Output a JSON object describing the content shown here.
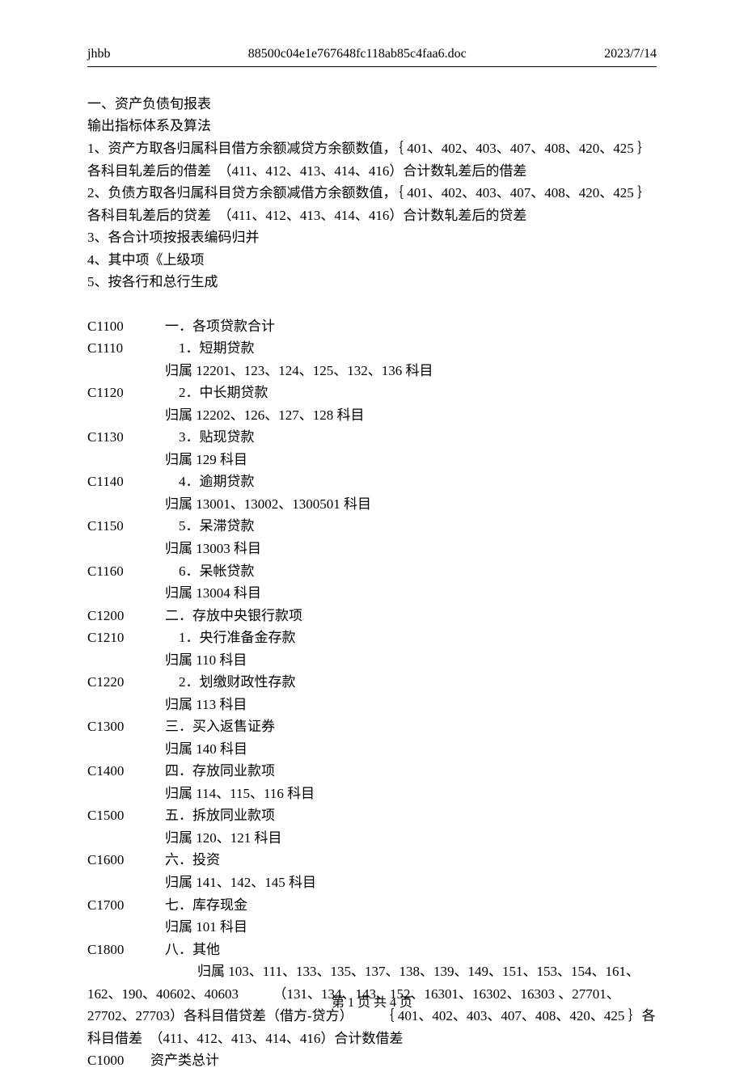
{
  "header": {
    "left": "jhbb",
    "center": "88500c04e1e767648fc118ab85c4faa6.doc",
    "right": "2023/7/14"
  },
  "title": "一、资产负债旬报表",
  "subtitle": "输出指标体系及算法",
  "rules": [
    "1、资产方取各归属科目借方余额减贷方余额数值，｛ 401、402、403、407、408、420、425 ｝各科目轧差后的借差　（411、412、413、414、416）合计数轧差后的借差",
    "2、负债方取各归属科目贷方余额减借方余额数值，｛ 401、402、403、407、408、420、425 ｝各科目轧差后的贷差　（411、412、413、414、416）合计数轧差后的贷差",
    "3、各合计项按报表编码归并",
    "4、其中项《上级项",
    "5、按各行和总行生成"
  ],
  "items": [
    {
      "code": "C1100",
      "desc": "一．各项贷款合计"
    },
    {
      "code": "C1110",
      "desc": "　1．短期贷款",
      "sub": "归属 12201、123、124、125、132、136 科目"
    },
    {
      "code": "C1120",
      "desc": "　2．中长期贷款",
      "sub": "归属 12202、126、127、128 科目"
    },
    {
      "code": "C1130",
      "desc": "　3．贴现贷款",
      "sub": " 归属 129 科目"
    },
    {
      "code": "C1140",
      "desc": "　4．逾期贷款",
      "sub": " 归属 13001、13002、1300501 科目"
    },
    {
      "code": "C1150",
      "desc": "　5．呆滞贷款",
      "sub": "归属 13003 科目"
    },
    {
      "code": "C1160",
      "desc": "　6．呆帐贷款",
      "sub": " 归属 13004 科目"
    },
    {
      "code": "C1200",
      "desc": "二．存放中央银行款项"
    },
    {
      "code": "C1210",
      "desc": "　1．央行准备金存款",
      "sub": " 归属 110 科目"
    },
    {
      "code": "C1220",
      "desc": "　2．划缴财政性存款",
      "sub": " 归属 113 科目"
    },
    {
      "code": "C1300",
      "desc": "三．买入返售证券",
      "sub": " 归属 140 科目"
    },
    {
      "code": "C1400",
      "desc": "四．存放同业款项",
      "sub": "  归属 114、115、116 科目"
    },
    {
      "code": "C1500",
      "desc": "五．拆放同业款项",
      "sub": "  归属 120、121 科目"
    },
    {
      "code": "C1600",
      "desc": "六．投资",
      "sub": "  归属 141、142、145 科目"
    },
    {
      "code": "C1700",
      "desc": "七．库存现金",
      "sub": "  归属 101 科目"
    },
    {
      "code": "C1800",
      "desc": "八．其他"
    }
  ],
  "others_note": "　　　　　　　　归属 103、111、133、135、137、138、139、149、151、153、154、161、162、190、40602、40603　　　（131、134、143、152、16301、16302、16303 、27701、27702、27703）各科目借贷差（借方-贷方）　　　｛ 401、402、403、407、408、420、425 ｝各科目借差　（411、412、413、414、416）合计数借差",
  "total": {
    "code": "C1000",
    "desc": "资产类总计"
  },
  "footer": "第 1 页 共 4 页"
}
